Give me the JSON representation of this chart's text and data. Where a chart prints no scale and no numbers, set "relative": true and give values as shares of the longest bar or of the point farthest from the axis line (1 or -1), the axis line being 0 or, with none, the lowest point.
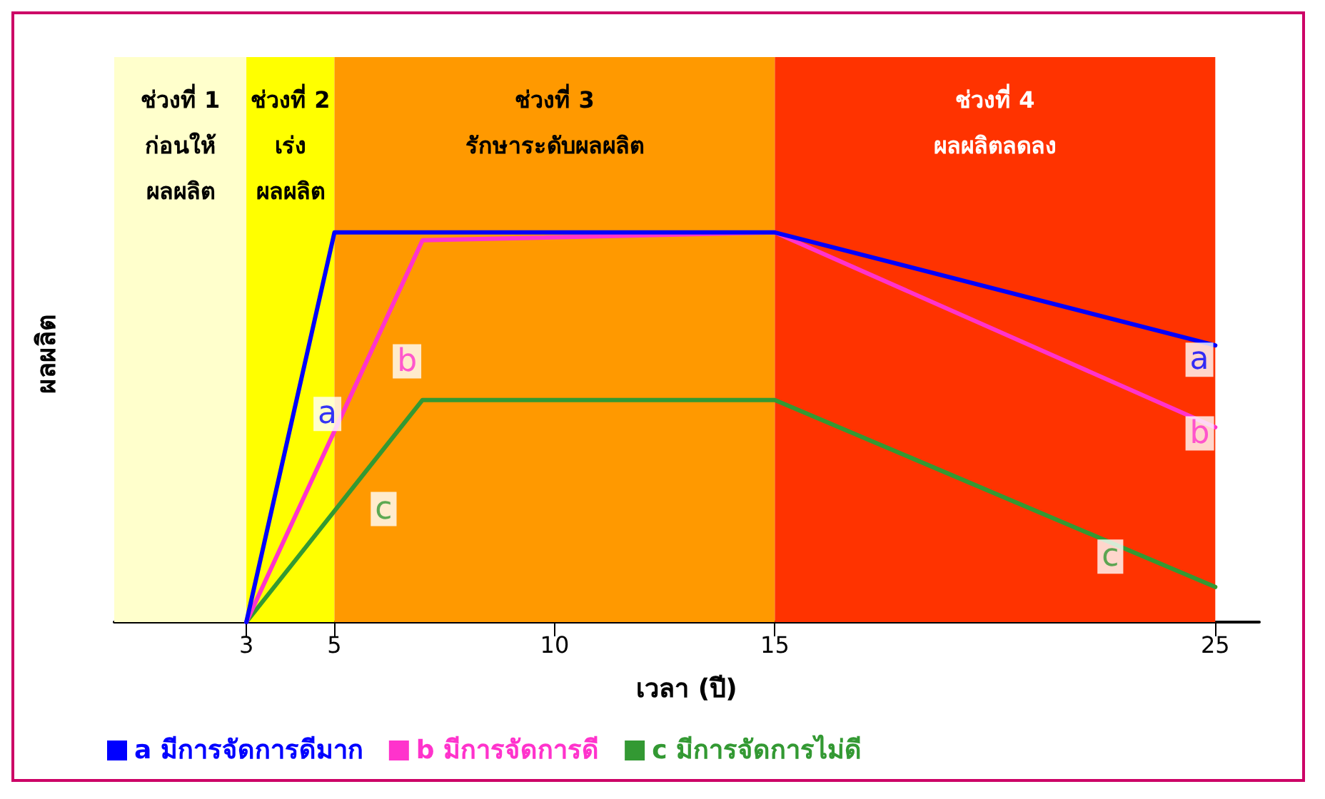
{
  "chart_data": {
    "type": "line",
    "xlabel": "เวลา (ปี)",
    "ylabel": "ผลผลิต",
    "relative": true,
    "xlim": [
      0,
      26
    ],
    "xticks": [
      3,
      5,
      10,
      15,
      25
    ],
    "series": [
      {
        "name": "a มีการจัดการดีมาก",
        "color": "#0000ff",
        "x": [
          3,
          5,
          15,
          25
        ],
        "values": [
          0,
          1,
          1,
          0.71
        ]
      },
      {
        "name": "b มีการจัดการดี",
        "color": "#ff33cc",
        "x": [
          3,
          7,
          15,
          25
        ],
        "values": [
          0,
          0.98,
          1,
          0.5
        ]
      },
      {
        "name": "c มีการจัดการไม่ดี",
        "color": "#339933",
        "x": [
          3,
          7,
          15,
          25
        ],
        "values": [
          0,
          0.57,
          0.57,
          0.09
        ]
      }
    ],
    "bands": [
      {
        "axis": "x",
        "from": 0,
        "to": 3,
        "label": "ช่วงที่ 1\nก่อนให้\nผลผลิต",
        "color": "#ffffcc"
      },
      {
        "axis": "x",
        "from": 3,
        "to": 5,
        "label": "ช่วงที่ 2\nเร่ง\nผลผลิต",
        "color": "#ffff00"
      },
      {
        "axis": "x",
        "from": 5,
        "to": 15,
        "label": "ช่วงที่ 3\nรักษาระดับผลผลิต",
        "color": "#ff9900"
      },
      {
        "axis": "x",
        "from": 15,
        "to": 25,
        "label": "ช่วงที่ 4\nผลผลิตลดลง",
        "color": "#ff3300"
      }
    ],
    "annotations": [
      {
        "text": "a",
        "x": 4.2,
        "y": 0.6
      },
      {
        "text": "b",
        "x": 6,
        "y": 0.735
      },
      {
        "text": "c",
        "x": 5.5,
        "y": 0.356
      },
      {
        "text": "a",
        "x": 24,
        "y": 0.739
      },
      {
        "text": "b",
        "x": 24,
        "y": 0.55
      },
      {
        "text": "c",
        "x": 22,
        "y": 0.234
      }
    ],
    "legend": "bottom left",
    "grid": false,
    "marker": "none",
    "line_style": "solid"
  }
}
